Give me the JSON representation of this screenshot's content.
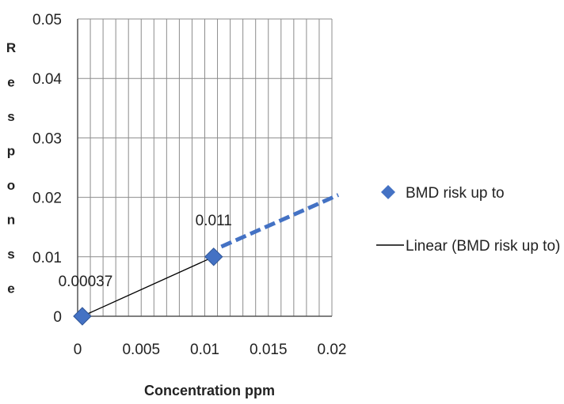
{
  "chart_data": {
    "type": "scatter",
    "title": "",
    "xlabel": "Concentration ppm",
    "ylabel": "Response",
    "xlim": [
      0,
      0.02
    ],
    "ylim": [
      0,
      0.05
    ],
    "xticks": [
      "0",
      "0.005",
      "0.01",
      "0.015",
      "0.02"
    ],
    "yticks": [
      "0",
      "0.01",
      "0.02",
      "0.03",
      "0.04",
      "0.05"
    ],
    "grid": true,
    "legend_position": "right",
    "series": [
      {
        "name": "BMD risk up to",
        "marker": "diamond",
        "color": "#4472c4",
        "points": [
          {
            "x": 0.00037,
            "y": 0,
            "label": "0.00037"
          },
          {
            "x": 0.0107,
            "y": 0.01,
            "label": "0.011"
          }
        ]
      }
    ],
    "trendline": {
      "name": "Linear (BMD risk up to)",
      "color": "#000000",
      "x": [
        0.00037,
        0.0107
      ],
      "y": [
        0,
        0.01
      ]
    },
    "extrapolation": {
      "style": "dashed",
      "color": "#4472c4",
      "x": [
        0.0113,
        0.0205
      ],
      "y": [
        0.0117,
        0.0204
      ]
    }
  }
}
